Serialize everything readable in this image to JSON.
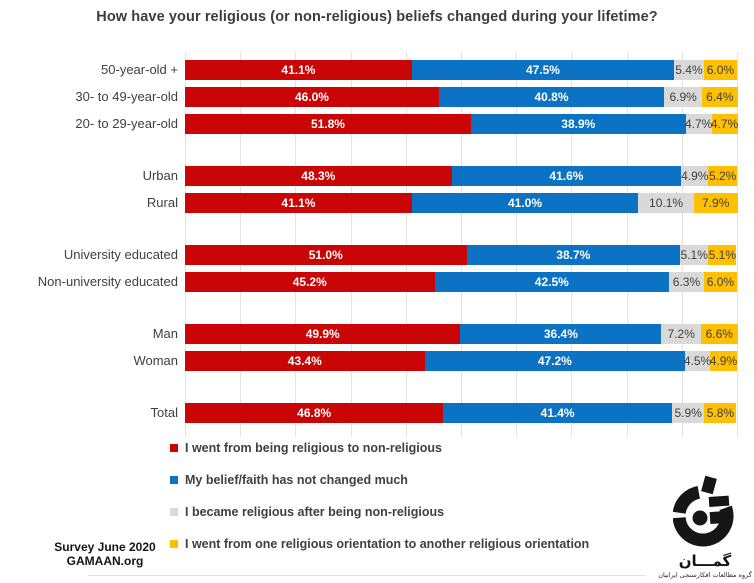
{
  "title": "How have your religious (or non-religious) beliefs changed during your lifetime?",
  "chart_data": {
    "type": "bar",
    "orientation": "horizontal",
    "stacked": true,
    "value_unit": "%",
    "x_range": [
      0,
      100
    ],
    "gridlines": {
      "on": true,
      "interval": 10,
      "color": "#e3e3e3"
    },
    "legend_position": "bottom-left",
    "series": [
      {
        "name": "I went from being religious to non-religious",
        "color": "#c90505",
        "label_color": "#ffffff",
        "label_bold": true
      },
      {
        "name": "My belief/faith has not changed much",
        "color": "#0b72c4",
        "label_color": "#ffffff",
        "label_bold": true
      },
      {
        "name": "I became religious after being non-religious",
        "color": "#d9d9d9",
        "label_color": "#404040",
        "label_bold": false
      },
      {
        "name": "I went from one religious orientation to another religious orientation",
        "color": "#ffc000",
        "label_color": "#404040",
        "label_bold": false
      }
    ],
    "rows": [
      {
        "label": "50-year-old +",
        "group_start": false,
        "values": [
          41.1,
          47.5,
          5.4,
          6.0
        ]
      },
      {
        "label": "30- to 49-year-old",
        "group_start": false,
        "values": [
          46.0,
          40.8,
          6.9,
          6.4
        ]
      },
      {
        "label": "20- to 29-year-old",
        "group_start": false,
        "values": [
          51.8,
          38.9,
          4.7,
          4.7
        ]
      },
      {
        "label": "Urban",
        "group_start": true,
        "values": [
          48.3,
          41.6,
          4.9,
          5.2
        ]
      },
      {
        "label": "Rural",
        "group_start": false,
        "values": [
          41.1,
          41.0,
          10.1,
          7.9
        ]
      },
      {
        "label": "University educated",
        "group_start": true,
        "values": [
          51.0,
          38.7,
          5.1,
          5.1
        ]
      },
      {
        "label": "Non-university educated",
        "group_start": false,
        "values": [
          45.2,
          42.5,
          6.3,
          6.0
        ]
      },
      {
        "label": "Man",
        "group_start": true,
        "values": [
          49.9,
          36.4,
          7.2,
          6.6
        ]
      },
      {
        "label": "Woman",
        "group_start": false,
        "values": [
          43.4,
          47.2,
          4.5,
          4.9
        ]
      },
      {
        "label": "Total",
        "group_start": true,
        "values": [
          46.8,
          41.4,
          5.9,
          5.8
        ]
      }
    ]
  },
  "footer": {
    "line1": "Survey June 2020",
    "line2": "GAMAAN.org"
  },
  "logo": {
    "name": "گمـــان",
    "subtitle": "گروه مطالعات افکارسنجی ایرانیان"
  }
}
